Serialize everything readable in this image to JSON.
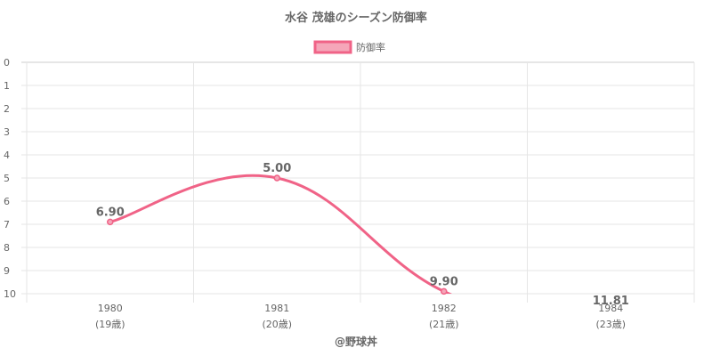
{
  "chart_data": {
    "type": "line",
    "title": "水谷 茂雄のシーズン防御率",
    "legend": {
      "label": "防御率",
      "position": "top-center"
    },
    "xlabel": "",
    "ylabel": "",
    "y_reversed": true,
    "ylim": [
      0,
      10
    ],
    "yticks": [
      0,
      1,
      2,
      3,
      4,
      5,
      6,
      7,
      8,
      9,
      10
    ],
    "x": [
      {
        "year": "1980",
        "age": "(19歳)"
      },
      {
        "year": "1981",
        "age": "(20歳)"
      },
      {
        "year": "1982",
        "age": "(21歳)"
      },
      {
        "year": "1984",
        "age": "(23歳)"
      }
    ],
    "series": [
      {
        "name": "防御率",
        "values": [
          6.9,
          5.0,
          9.9,
          11.81
        ],
        "labels": [
          "6.90",
          "5.00",
          "9.90",
          "11.81"
        ]
      }
    ],
    "grid": true,
    "colors": {
      "line": "#f06387",
      "fill": "#f5a6b9",
      "grid": "#e6e6e6",
      "text": "#666666",
      "title": "#666666"
    }
  },
  "footer": {
    "credit": "@野球丼"
  }
}
